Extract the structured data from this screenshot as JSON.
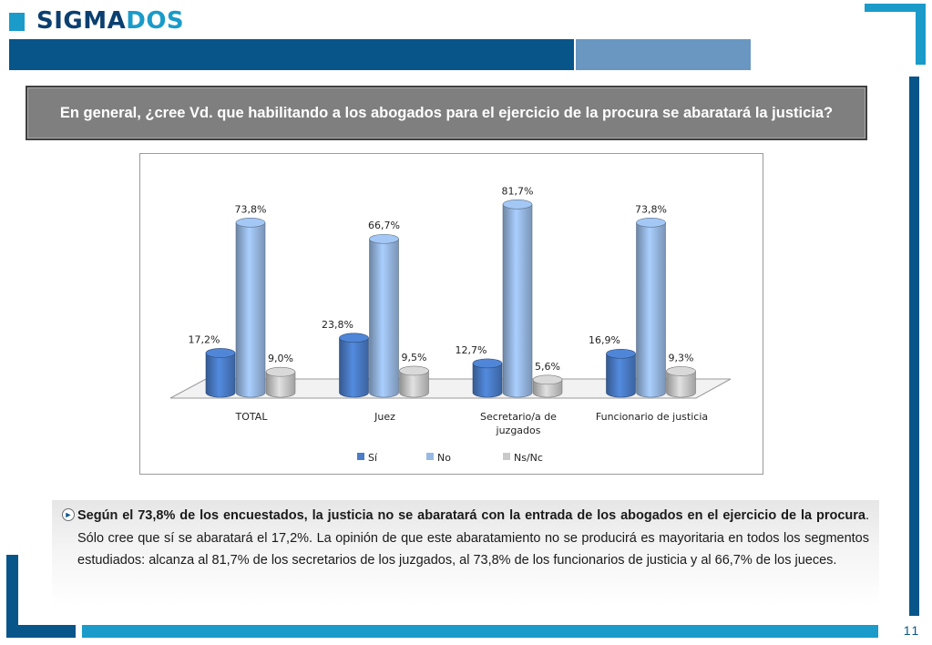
{
  "header": {
    "logo_part1": "SIGMA",
    "logo_part2": "DOS",
    "page_number": "11"
  },
  "question": {
    "text": "En general, ¿cree Vd. que habilitando a los abogados para el ejercicio de la procura se abaratará la justicia?"
  },
  "chart_data": {
    "type": "bar",
    "style": "3d-cylinder",
    "title": "",
    "categories": [
      "TOTAL",
      "Juez",
      "Secretario/a de juzgados",
      "Funcionario de justicia"
    ],
    "category_lines": [
      [
        "TOTAL"
      ],
      [
        "Juez"
      ],
      [
        "Secretario/a de",
        "juzgados"
      ],
      [
        "Funcionario de justicia"
      ]
    ],
    "series": [
      {
        "name": "Sí",
        "values": [
          17.2,
          23.8,
          12.7,
          16.9
        ],
        "labels": [
          "17,2%",
          "23,8%",
          "12,7%",
          "16,9%"
        ]
      },
      {
        "name": "No",
        "values": [
          73.8,
          66.7,
          81.7,
          73.8
        ],
        "labels": [
          "73,8%",
          "66,7%",
          "81,7%",
          "73,8%"
        ]
      },
      {
        "name": "Ns/Nc",
        "values": [
          9.0,
          9.5,
          5.6,
          9.3
        ],
        "labels": [
          "9,0%",
          "9,5%",
          "5,6%",
          "9,3%"
        ]
      }
    ],
    "colors": [
      "#4a7cc7",
      "#98b9e3",
      "#c9c9c9"
    ],
    "unit": "%",
    "ylim": [
      0,
      100
    ],
    "legend_position": "bottom",
    "grid": false
  },
  "summary": {
    "bold_text": "Según el 73,8% de los encuestados, la justicia no se abaratará con la entrada de los abogados en el ejercicio de la procura",
    "text": ". Sólo cree que sí se abaratará el 17,2%. La opinión de que este abaratamiento no se producirá es mayoritaria en todos los segmentos estudiados: alcanza al 81,7% de los secretarios de los juzgados, al 73,8% de los funcionarios de justicia y al 66,7% de los jueces."
  }
}
